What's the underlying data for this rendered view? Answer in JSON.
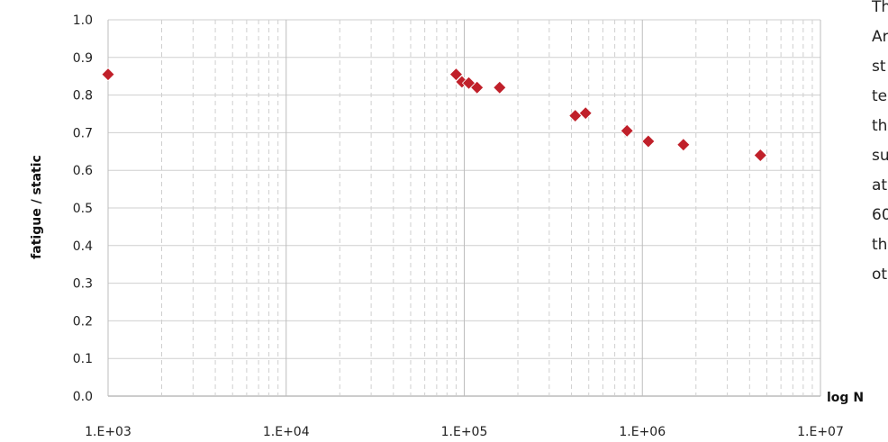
{
  "chart_data": {
    "type": "scatter",
    "title": "",
    "xlabel": "log N",
    "ylabel": "fatigue / static",
    "x_scale": "log",
    "xlim": [
      1000,
      10000000
    ],
    "ylim": [
      0,
      1.0
    ],
    "x_ticks": [
      "1.E+03",
      "1.E+04",
      "1.E+05",
      "1.E+06",
      "1.E+07"
    ],
    "y_ticks": [
      "0.0",
      "0.1",
      "0.2",
      "0.3",
      "0.4",
      "0.5",
      "0.6",
      "0.7",
      "0.8",
      "0.9",
      "1.0"
    ],
    "grid": true,
    "marker": "diamond",
    "color": "#c0202a",
    "series": [
      {
        "x": [
          1000,
          90000,
          97000,
          106000,
          118000,
          158000,
          420000,
          480000,
          820000,
          1080000,
          1700000,
          4600000
        ],
        "y": [
          0.855,
          0.855,
          0.835,
          0.832,
          0.82,
          0.82,
          0.745,
          0.752,
          0.705,
          0.677,
          0.668,
          0.64
        ]
      }
    ]
  },
  "side_text": [
    "Th",
    "Ar",
    "st",
    "te",
    "th",
    "su",
    "at",
    "60",
    "th",
    "ot"
  ]
}
